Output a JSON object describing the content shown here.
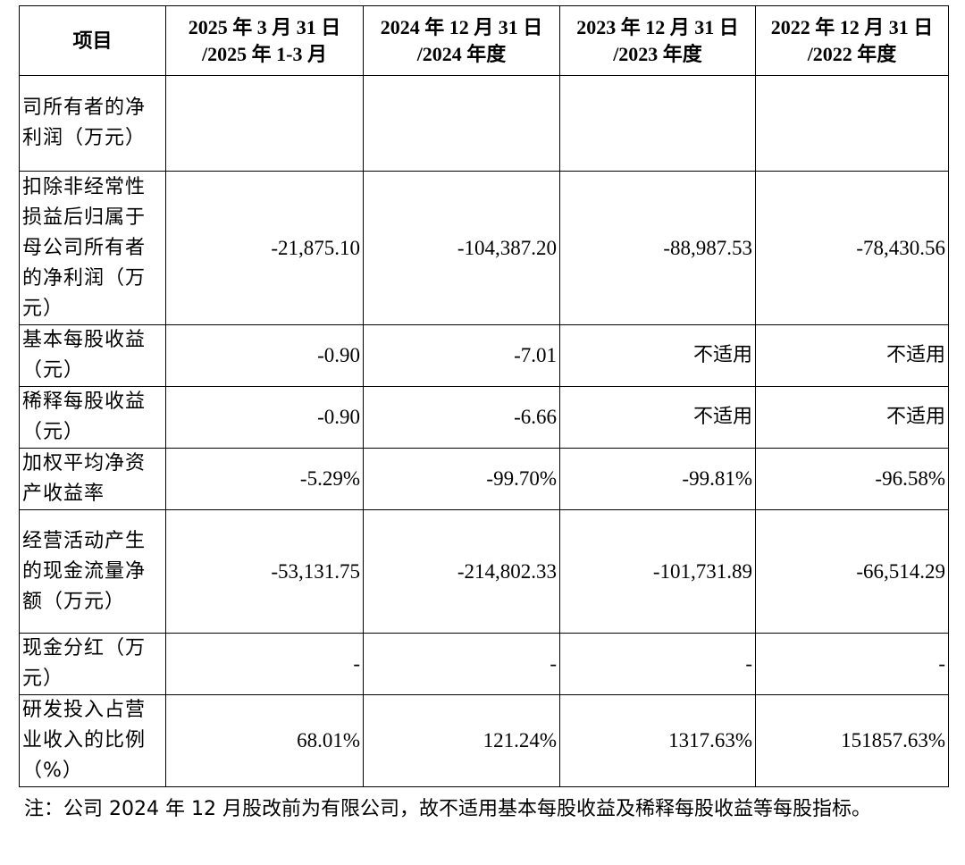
{
  "header": {
    "item": "项目",
    "col1": [
      "2025 年 3 月 31 日",
      "/2025 年 1-3 月"
    ],
    "col2": [
      "2024 年 12 月 31 日",
      "/2024 年度"
    ],
    "col3": [
      "2023 年 12 月 31 日",
      "/2023 年度"
    ],
    "col4": [
      "2022 年 12 月 31 日",
      "/2022 年度"
    ]
  },
  "rows": [
    {
      "label": "司所有者的净利润（万元）",
      "v1": "",
      "v2": "",
      "v3": "",
      "v4": ""
    },
    {
      "label": "扣除非经常性损益后归属于母公司所有者的净利润（万元）",
      "v1": "-21,875.10",
      "v2": "-104,387.20",
      "v3": "-88,987.53",
      "v4": "-78,430.56"
    },
    {
      "label": "基本每股收益（元）",
      "v1": "-0.90",
      "v2": "-7.01",
      "v3": "不适用",
      "v4": "不适用"
    },
    {
      "label": "稀释每股收益（元）",
      "v1": "-0.90",
      "v2": "-6.66",
      "v3": "不适用",
      "v4": "不适用"
    },
    {
      "label": "加权平均净资产收益率",
      "v1": "-5.29%",
      "v2": "-99.70%",
      "v3": "-99.81%",
      "v4": "-96.58%"
    },
    {
      "label": "经营活动产生的现金流量净额（万元）",
      "v1": "-53,131.75",
      "v2": "-214,802.33",
      "v3": "-101,731.89",
      "v4": "-66,514.29"
    },
    {
      "label": "现金分红（万元）",
      "v1": "-",
      "v2": "-",
      "v3": "-",
      "v4": "-"
    },
    {
      "label": "研发投入占营业收入的比例（%）",
      "v1": "68.01%",
      "v2": "121.24%",
      "v3": "1317.63%",
      "v4": "151857.63%"
    }
  ],
  "note": "注：公司 2024 年 12 月股改前为有限公司，故不适用基本每股收益及稀释每股收益等每股指标。"
}
